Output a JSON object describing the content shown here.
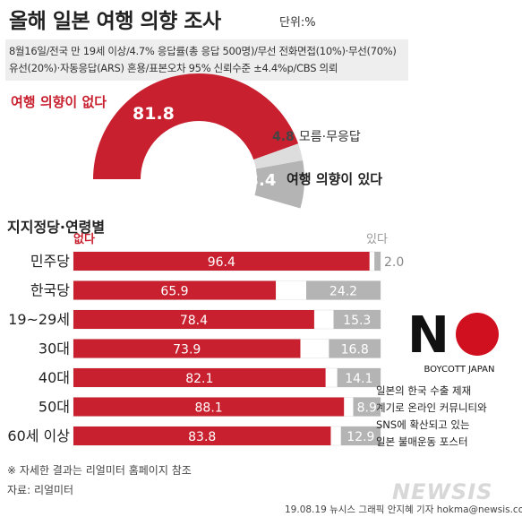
{
  "header": {
    "title": "올해 일본 여행 의향 조사",
    "unit": "단위:%"
  },
  "survey_info": {
    "line1": "8월16일/전국 만 19세 이상/4.7% 응답률(총 응답 500명)/무선 전화면접(10%)·무선(70%)",
    "line2": "유선(20%)·자동응답(ARS) 혼용/표본오차 95% 신뢰수준 ±4.4%p/CBS 의뢰"
  },
  "colors": {
    "no": "#c8202f",
    "yes": "#b4b4b4",
    "unsure": "#dddddd",
    "track": "#ffffff"
  },
  "chart_data": [
    {
      "type": "pie",
      "variant": "half-donut",
      "labels": [
        "여행 의향이 없다",
        "모름·무응답",
        "여행 의향이 있다"
      ],
      "values": [
        81.8,
        4.8,
        13.4
      ],
      "value_labels": [
        "81.8",
        "4.8",
        "13.4"
      ]
    },
    {
      "type": "bar",
      "orientation": "horizontal",
      "stacked": true,
      "title": "지지정당·연령별",
      "categories": [
        "민주당",
        "한국당",
        "19~29세",
        "30대",
        "40대",
        "50대",
        "60세 이상"
      ],
      "series": [
        {
          "name": "없다",
          "values": [
            96.4,
            65.9,
            78.4,
            73.9,
            82.1,
            88.1,
            83.8
          ]
        },
        {
          "name": "있다",
          "values": [
            2.0,
            24.2,
            15.3,
            16.8,
            14.1,
            8.9,
            12.9
          ]
        }
      ],
      "xlim": [
        0,
        100
      ]
    }
  ],
  "poster": {
    "big_letter": "N",
    "caption": "BOYCOTT JAPAN"
  },
  "poster_note": {
    "line1": "일본의 한국 수출 제재",
    "line2": "계기로 온라인 커뮤니티와",
    "line3": "SNS에 확산되고 있는",
    "line4": "일본 불매운동 포스터"
  },
  "footer": {
    "footnote": "※ 자세한 결과는 리얼미터 홈페이지 참조",
    "source": "자료: 리얼미터",
    "credit": "19.08.19 뉴시스 그래픽 안지혜 기자 hokma@newsis.com",
    "logo": "NEWSIS"
  }
}
